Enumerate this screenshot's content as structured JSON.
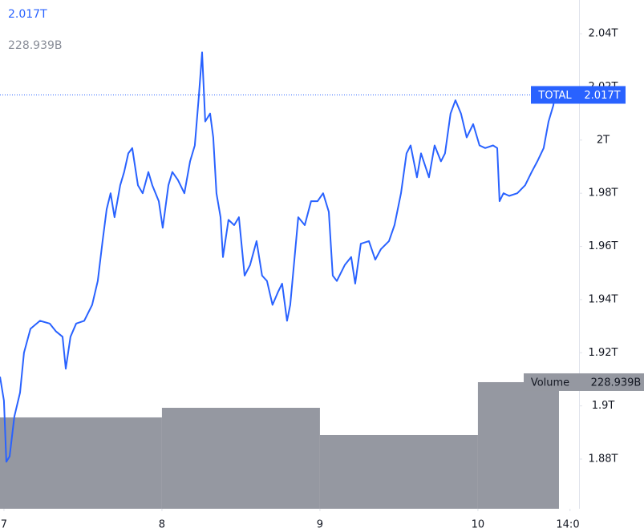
{
  "chart_data": {
    "type": "line",
    "series": [
      {
        "name": "TOTAL",
        "color": "#2962ff",
        "last_label": "2.017T",
        "x": [
          6.975,
          7.0,
          7.015,
          7.036,
          7.066,
          7.102,
          7.127,
          7.168,
          7.228,
          7.289,
          7.33,
          7.371,
          7.391,
          7.421,
          7.457,
          7.508,
          7.558,
          7.594,
          7.624,
          7.65,
          7.675,
          7.7,
          7.736,
          7.761,
          7.787,
          7.812,
          7.848,
          7.878,
          7.914,
          7.939,
          7.98,
          8.005,
          8.041,
          8.066,
          8.101,
          8.142,
          8.178,
          8.208,
          8.233,
          8.254,
          8.274,
          8.305,
          8.325,
          8.345,
          8.371,
          8.386,
          8.421,
          8.457,
          8.487,
          8.523,
          8.558,
          8.599,
          8.634,
          8.665,
          8.7,
          8.736,
          8.761,
          8.792,
          8.812,
          8.863,
          8.904,
          8.944,
          8.985,
          9.02,
          9.056,
          9.081,
          9.107,
          9.157,
          9.198,
          9.223,
          9.259,
          9.31,
          9.35,
          9.386,
          9.437,
          9.472,
          9.513,
          9.548,
          9.574,
          9.614,
          9.64,
          9.69,
          9.726,
          9.766,
          9.792,
          9.827,
          9.858,
          9.893,
          9.929,
          9.97,
          10.01,
          10.046,
          10.096,
          10.122,
          10.137,
          10.162,
          10.198,
          10.249,
          10.299,
          10.34,
          10.376,
          10.416,
          10.447,
          10.477,
          10.497,
          10.513
        ],
        "values": [
          1.911,
          1.902,
          1.879,
          1.881,
          1.896,
          1.905,
          1.92,
          1.929,
          1.932,
          1.931,
          1.928,
          1.926,
          1.914,
          1.926,
          1.931,
          1.932,
          1.938,
          1.947,
          1.962,
          1.974,
          1.98,
          1.971,
          1.983,
          1.988,
          1.995,
          1.997,
          1.983,
          1.98,
          1.988,
          1.983,
          1.977,
          1.967,
          1.983,
          1.988,
          1.985,
          1.98,
          1.992,
          1.998,
          2.016,
          2.033,
          2.007,
          2.01,
          2.001,
          1.98,
          1.971,
          1.956,
          1.97,
          1.968,
          1.971,
          1.949,
          1.953,
          1.962,
          1.949,
          1.947,
          1.938,
          1.943,
          1.946,
          1.932,
          1.938,
          1.971,
          1.968,
          1.977,
          1.977,
          1.98,
          1.973,
          1.949,
          1.947,
          1.953,
          1.956,
          1.946,
          1.961,
          1.962,
          1.955,
          1.959,
          1.962,
          1.968,
          1.98,
          1.995,
          1.998,
          1.986,
          1.995,
          1.986,
          1.998,
          1.992,
          1.995,
          2.01,
          2.015,
          2.01,
          2.001,
          2.006,
          1.998,
          1.997,
          1.998,
          1.997,
          1.977,
          1.98,
          1.979,
          1.98,
          1.983,
          1.988,
          1.992,
          1.997,
          2.007,
          2.013,
          2.02,
          2.017
        ]
      }
    ],
    "volume": {
      "name": "Volume",
      "color": "#9598a1",
      "bins": [
        6.975,
        8,
        9,
        10,
        10.513
      ],
      "values": [
        165.2,
        182.6,
        133.3,
        228.939
      ],
      "value_labels": [
        null,
        null,
        null,
        "228.939B"
      ],
      "ylim": [
        0,
        920
      ]
    },
    "xlim": [
      6.975,
      10.64
    ],
    "xticks": [
      7,
      8,
      9,
      10,
      {
        "value": 10.583,
        "label": "14:0"
      }
    ],
    "ylim": [
      1.8613,
      2.0527
    ],
    "yticks": [
      {
        "value": 1.88,
        "label": "1.88T"
      },
      {
        "value": 1.9,
        "label": "1.9T"
      },
      {
        "value": 1.92,
        "label": "1.92T"
      },
      {
        "value": 1.94,
        "label": "1.94T"
      },
      {
        "value": 1.96,
        "label": "1.96T"
      },
      {
        "value": 1.98,
        "label": "1.98T"
      },
      {
        "value": 2,
        "label": "2T"
      },
      {
        "value": 2.02,
        "label": "2.02T"
      },
      {
        "value": 2.04,
        "label": "2.04T"
      }
    ]
  }
}
